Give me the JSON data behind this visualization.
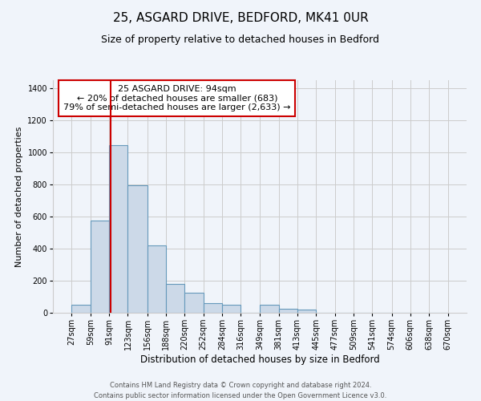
{
  "title1": "25, ASGARD DRIVE, BEDFORD, MK41 0UR",
  "title2": "Size of property relative to detached houses in Bedford",
  "xlabel": "Distribution of detached houses by size in Bedford",
  "ylabel": "Number of detached properties",
  "bin_edges": [
    27,
    59,
    91,
    123,
    156,
    188,
    220,
    252,
    284,
    316,
    349,
    381,
    413,
    445,
    477,
    509,
    541,
    574,
    606,
    638,
    670
  ],
  "bar_heights": [
    50,
    575,
    1045,
    795,
    420,
    180,
    125,
    62,
    50,
    0,
    50,
    25,
    20,
    0,
    0,
    0,
    0,
    0,
    0,
    0
  ],
  "bar_color": "#ccd9e8",
  "bar_edge_color": "#6699bb",
  "vline_x": 94,
  "vline_color": "#cc0000",
  "annotation_title": "25 ASGARD DRIVE: 94sqm",
  "annotation_line1": "← 20% of detached houses are smaller (683)",
  "annotation_line2": "79% of semi-detached houses are larger (2,633) →",
  "annotation_box_color": "#ffffff",
  "annotation_box_edge": "#cc0000",
  "ylim": [
    0,
    1450
  ],
  "yticks": [
    0,
    200,
    400,
    600,
    800,
    1000,
    1200,
    1400
  ],
  "grid_color": "#cccccc",
  "background_color": "#f0f4fa",
  "footer1": "Contains HM Land Registry data © Crown copyright and database right 2024.",
  "footer2": "Contains public sector information licensed under the Open Government Licence v3.0.",
  "title1_fontsize": 11,
  "title2_fontsize": 9,
  "xlabel_fontsize": 8.5,
  "ylabel_fontsize": 8,
  "tick_fontsize": 7,
  "annotation_fontsize": 8,
  "footer_fontsize": 6
}
